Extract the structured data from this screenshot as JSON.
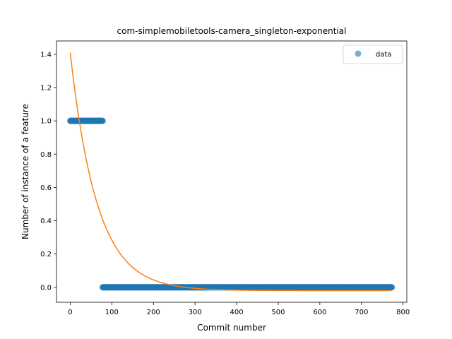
{
  "chart_data": {
    "type": "scatter",
    "title": "com-simplemobiletools-camera_singleton-exponential",
    "xlabel": "Commit number",
    "ylabel": "Number of instance of a feature",
    "xlim": [
      -33,
      809
    ],
    "ylim": [
      -0.09,
      1.48
    ],
    "xticks": [
      0,
      100,
      200,
      300,
      400,
      500,
      600,
      700,
      800
    ],
    "yticks": [
      0.0,
      0.2,
      0.4,
      0.6,
      0.8,
      1.0,
      1.2,
      1.4
    ],
    "ytick_labels": [
      "0.0",
      "0.2",
      "0.4",
      "0.6",
      "0.8",
      "1.0",
      "1.2",
      "1.4"
    ],
    "grid": false,
    "legend": {
      "position": "top-right",
      "entries": [
        "data"
      ]
    },
    "series": [
      {
        "name": "data",
        "kind": "scatter",
        "color": "#1f77b4",
        "segments": [
          {
            "x_start": 0,
            "x_end": 78,
            "y": 1.0
          },
          {
            "x_start": 78,
            "x_end": 773,
            "y": 0.0
          }
        ]
      },
      {
        "kind": "line",
        "color": "#ff7f0e",
        "model": "exponential",
        "a": 1.43,
        "b": 0.0155,
        "c": -0.02,
        "x_range": [
          0,
          773
        ]
      }
    ]
  }
}
